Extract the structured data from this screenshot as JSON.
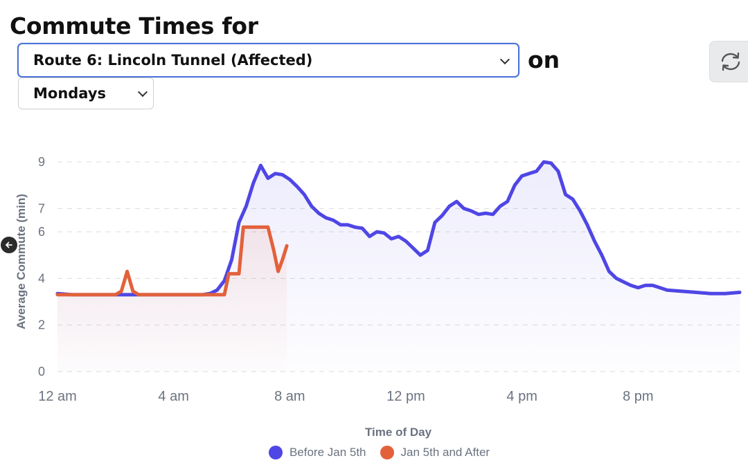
{
  "header": {
    "title": "Commute Times for",
    "connector": "on"
  },
  "controls": {
    "route": {
      "selected": "Route 6: Lincoln Tunnel (Affected)"
    },
    "day": {
      "selected": "Mondays"
    }
  },
  "icons": {
    "refresh": "refresh-icon",
    "back": "arrow-left-icon",
    "dropdown": "chevron-down-icon"
  },
  "chart_data": {
    "type": "line",
    "title": "",
    "xlabel": "Time of Day",
    "ylabel": "Average Commute (min)",
    "ylim": [
      0,
      9
    ],
    "xlim_hours": [
      0,
      23.5
    ],
    "x_ticks": [
      {
        "hour": 0,
        "label": "12 am"
      },
      {
        "hour": 4,
        "label": "4 am"
      },
      {
        "hour": 8,
        "label": "8 am"
      },
      {
        "hour": 12,
        "label": "12 pm"
      },
      {
        "hour": 16,
        "label": "4 pm"
      },
      {
        "hour": 20,
        "label": "8 pm"
      }
    ],
    "y_ticks": [
      {
        "value": 0,
        "label": "0"
      },
      {
        "value": 2,
        "label": "2"
      },
      {
        "value": 4,
        "label": "4"
      },
      {
        "value": 6,
        "label": "6"
      },
      {
        "value": 7,
        "label": "7"
      },
      {
        "value": 9,
        "label": "9"
      }
    ],
    "grid": true,
    "legend_position": "bottom-center",
    "series": [
      {
        "name": "Before Jan 5th",
        "color": "#4f46e5",
        "x": [
          0,
          0.5,
          1,
          1.5,
          2,
          2.5,
          3,
          3.5,
          4,
          4.5,
          5,
          5.25,
          5.5,
          5.75,
          6,
          6.25,
          6.5,
          6.75,
          7,
          7.25,
          7.5,
          7.75,
          8,
          8.25,
          8.5,
          8.75,
          9,
          9.25,
          9.5,
          9.75,
          10,
          10.25,
          10.5,
          10.75,
          11,
          11.25,
          11.5,
          11.75,
          12,
          12.25,
          12.5,
          12.75,
          13,
          13.25,
          13.5,
          13.75,
          14,
          14.25,
          14.5,
          14.75,
          15,
          15.25,
          15.5,
          15.75,
          16,
          16.25,
          16.5,
          16.75,
          17,
          17.25,
          17.5,
          17.75,
          18,
          18.25,
          18.5,
          18.75,
          19,
          19.25,
          19.5,
          19.75,
          20,
          20.25,
          20.5,
          20.75,
          21,
          21.5,
          22,
          22.5,
          23,
          23.5
        ],
        "values": [
          3.35,
          3.3,
          3.3,
          3.3,
          3.3,
          3.3,
          3.3,
          3.3,
          3.3,
          3.3,
          3.3,
          3.35,
          3.5,
          3.9,
          4.8,
          6.4,
          7.1,
          8.1,
          8.85,
          8.3,
          8.5,
          8.45,
          8.25,
          7.95,
          7.6,
          7.1,
          6.8,
          6.6,
          6.5,
          6.3,
          6.3,
          6.2,
          6.15,
          5.8,
          6.0,
          5.95,
          5.7,
          5.8,
          5.6,
          5.3,
          5.0,
          5.2,
          6.4,
          6.7,
          7.1,
          7.3,
          7.0,
          6.9,
          6.75,
          6.8,
          6.75,
          7.1,
          7.3,
          8.0,
          8.4,
          8.5,
          8.6,
          9.0,
          8.95,
          8.6,
          7.6,
          7.4,
          6.9,
          6.3,
          5.6,
          5.0,
          4.3,
          4.0,
          3.85,
          3.7,
          3.6,
          3.7,
          3.7,
          3.6,
          3.5,
          3.45,
          3.4,
          3.35,
          3.35,
          3.4
        ]
      },
      {
        "name": "Jan 5th and After",
        "color": "#e2613b",
        "x": [
          0,
          0.5,
          1,
          1.5,
          2,
          2.2,
          2.4,
          2.6,
          2.8,
          3,
          3.5,
          4,
          4.5,
          5,
          5.5,
          5.75,
          5.9,
          6.1,
          6.25,
          6.4,
          6.6,
          7,
          7.25,
          7.45,
          7.6,
          7.75,
          7.9
        ],
        "values": [
          3.3,
          3.3,
          3.3,
          3.3,
          3.3,
          3.45,
          4.3,
          3.45,
          3.3,
          3.3,
          3.3,
          3.3,
          3.3,
          3.3,
          3.3,
          3.3,
          4.2,
          4.2,
          4.2,
          6.2,
          6.2,
          6.2,
          6.2,
          5.2,
          4.3,
          4.8,
          5.4
        ]
      }
    ]
  }
}
